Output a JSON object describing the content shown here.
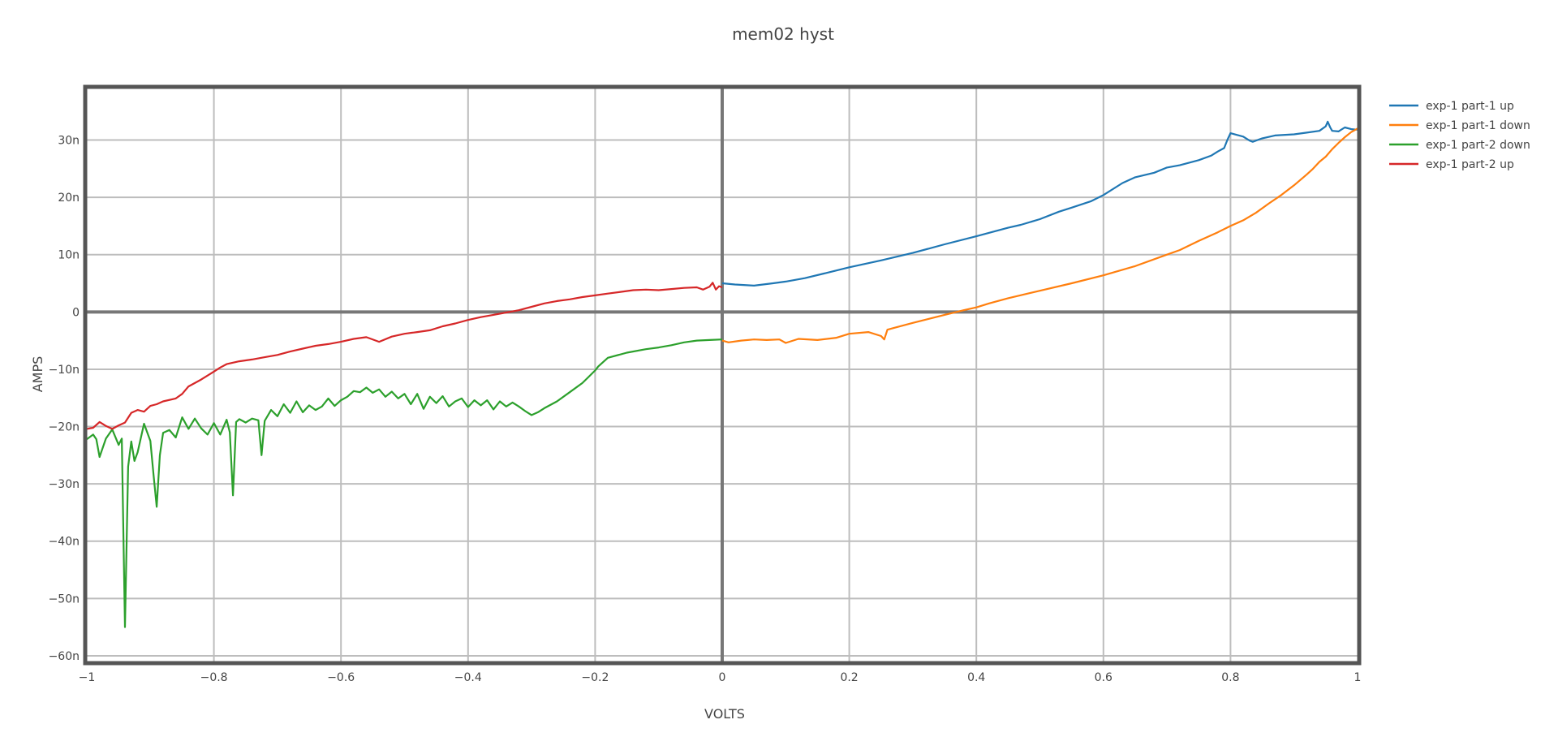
{
  "chart_data": {
    "type": "line",
    "title": "mem02 hyst",
    "xlabel": "VOLTS",
    "ylabel": "AMPS",
    "xlim": [
      -1,
      1
    ],
    "ylim": [
      -61,
      39
    ],
    "grid": true,
    "legend_position": "top-right",
    "x_ticks": [
      {
        "value": -1,
        "label": "−1"
      },
      {
        "value": -0.8,
        "label": "−0.8"
      },
      {
        "value": -0.6,
        "label": "−0.6"
      },
      {
        "value": -0.4,
        "label": "−0.4"
      },
      {
        "value": -0.2,
        "label": "−0.2"
      },
      {
        "value": 0,
        "label": "0"
      },
      {
        "value": 0.2,
        "label": "0.2"
      },
      {
        "value": 0.4,
        "label": "0.4"
      },
      {
        "value": 0.6,
        "label": "0.6"
      },
      {
        "value": 0.8,
        "label": "0.8"
      },
      {
        "value": 1,
        "label": "1"
      }
    ],
    "y_ticks": [
      {
        "value": 30,
        "label": "30n"
      },
      {
        "value": 20,
        "label": "20n"
      },
      {
        "value": 10,
        "label": "10n"
      },
      {
        "value": 0,
        "label": "0"
      },
      {
        "value": -10,
        "label": "−10n"
      },
      {
        "value": -20,
        "label": "−20n"
      },
      {
        "value": -30,
        "label": "−30n"
      },
      {
        "value": -40,
        "label": "−40n"
      },
      {
        "value": -50,
        "label": "−50n"
      },
      {
        "value": -60,
        "label": "−60n"
      }
    ],
    "series": [
      {
        "name": "exp-1 part-1 up",
        "color": "#1f77b4",
        "points": [
          [
            0,
            5
          ],
          [
            0.02,
            4.8
          ],
          [
            0.05,
            4.6
          ],
          [
            0.08,
            5
          ],
          [
            0.1,
            5.3
          ],
          [
            0.13,
            5.9
          ],
          [
            0.16,
            6.7
          ],
          [
            0.2,
            7.8
          ],
          [
            0.25,
            9
          ],
          [
            0.3,
            10.3
          ],
          [
            0.35,
            11.8
          ],
          [
            0.4,
            13.2
          ],
          [
            0.45,
            14.7
          ],
          [
            0.47,
            15.2
          ],
          [
            0.5,
            16.2
          ],
          [
            0.53,
            17.5
          ],
          [
            0.55,
            18.2
          ],
          [
            0.58,
            19.3
          ],
          [
            0.6,
            20.4
          ],
          [
            0.63,
            22.5
          ],
          [
            0.65,
            23.5
          ],
          [
            0.68,
            24.3
          ],
          [
            0.7,
            25.2
          ],
          [
            0.72,
            25.6
          ],
          [
            0.75,
            26.5
          ],
          [
            0.77,
            27.3
          ],
          [
            0.78,
            28
          ],
          [
            0.79,
            28.6
          ],
          [
            0.795,
            30
          ],
          [
            0.8,
            31.2
          ],
          [
            0.81,
            30.9
          ],
          [
            0.82,
            30.6
          ],
          [
            0.83,
            29.9
          ],
          [
            0.835,
            29.7
          ],
          [
            0.85,
            30.3
          ],
          [
            0.87,
            30.8
          ],
          [
            0.9,
            31
          ],
          [
            0.92,
            31.3
          ],
          [
            0.94,
            31.6
          ],
          [
            0.95,
            32.4
          ],
          [
            0.953,
            33.2
          ],
          [
            0.957,
            32.2
          ],
          [
            0.96,
            31.6
          ],
          [
            0.97,
            31.5
          ],
          [
            0.98,
            32.2
          ],
          [
            0.99,
            31.9
          ],
          [
            1,
            31.8
          ]
        ]
      },
      {
        "name": "exp-1 part-1 down",
        "color": "#ff7f0e",
        "points": [
          [
            1,
            32
          ],
          [
            0.99,
            31.4
          ],
          [
            0.98,
            30.5
          ],
          [
            0.97,
            29.5
          ],
          [
            0.96,
            28.4
          ],
          [
            0.95,
            27.1
          ],
          [
            0.94,
            26.2
          ],
          [
            0.93,
            25
          ],
          [
            0.92,
            24
          ],
          [
            0.9,
            22.1
          ],
          [
            0.88,
            20.4
          ],
          [
            0.86,
            18.9
          ],
          [
            0.84,
            17.3
          ],
          [
            0.82,
            16
          ],
          [
            0.8,
            15
          ],
          [
            0.78,
            13.9
          ],
          [
            0.75,
            12.4
          ],
          [
            0.72,
            10.8
          ],
          [
            0.7,
            10
          ],
          [
            0.65,
            8
          ],
          [
            0.6,
            6.4
          ],
          [
            0.55,
            5
          ],
          [
            0.5,
            3.7
          ],
          [
            0.45,
            2.4
          ],
          [
            0.42,
            1.5
          ],
          [
            0.4,
            0.8
          ],
          [
            0.38,
            0.3
          ],
          [
            0.35,
            -0.5
          ],
          [
            0.3,
            -1.9
          ],
          [
            0.27,
            -2.8
          ],
          [
            0.26,
            -3.1
          ],
          [
            0.255,
            -4.8
          ],
          [
            0.25,
            -4.2
          ],
          [
            0.23,
            -3.5
          ],
          [
            0.2,
            -3.8
          ],
          [
            0.18,
            -4.5
          ],
          [
            0.15,
            -4.9
          ],
          [
            0.12,
            -4.7
          ],
          [
            0.1,
            -5.4
          ],
          [
            0.09,
            -4.8
          ],
          [
            0.07,
            -4.9
          ],
          [
            0.05,
            -4.8
          ],
          [
            0.03,
            -5
          ],
          [
            0.01,
            -5.3
          ],
          [
            0,
            -5
          ]
        ]
      },
      {
        "name": "exp-1 part-2 down",
        "color": "#2ca02c",
        "points": [
          [
            0,
            -4.8
          ],
          [
            -0.02,
            -4.9
          ],
          [
            -0.04,
            -5
          ],
          [
            -0.06,
            -5.3
          ],
          [
            -0.08,
            -5.8
          ],
          [
            -0.1,
            -6.2
          ],
          [
            -0.12,
            -6.5
          ],
          [
            -0.15,
            -7.1
          ],
          [
            -0.18,
            -8
          ],
          [
            -0.195,
            -9.5
          ],
          [
            -0.2,
            -10.2
          ],
          [
            -0.21,
            -11.3
          ],
          [
            -0.22,
            -12.4
          ],
          [
            -0.24,
            -14
          ],
          [
            -0.26,
            -15.6
          ],
          [
            -0.28,
            -16.8
          ],
          [
            -0.29,
            -17.5
          ],
          [
            -0.3,
            -18
          ],
          [
            -0.31,
            -17.3
          ],
          [
            -0.32,
            -16.5
          ],
          [
            -0.33,
            -15.8
          ],
          [
            -0.34,
            -16.5
          ],
          [
            -0.35,
            -15.6
          ],
          [
            -0.36,
            -17
          ],
          [
            -0.37,
            -15.4
          ],
          [
            -0.38,
            -16.3
          ],
          [
            -0.39,
            -15.4
          ],
          [
            -0.4,
            -16.6
          ],
          [
            -0.41,
            -15.1
          ],
          [
            -0.42,
            -15.6
          ],
          [
            -0.43,
            -16.5
          ],
          [
            -0.44,
            -14.7
          ],
          [
            -0.45,
            -15.9
          ],
          [
            -0.46,
            -14.8
          ],
          [
            -0.47,
            -16.9
          ],
          [
            -0.48,
            -14.3
          ],
          [
            -0.49,
            -16.1
          ],
          [
            -0.5,
            -14.3
          ],
          [
            -0.51,
            -15.1
          ],
          [
            -0.52,
            -13.9
          ],
          [
            -0.53,
            -14.8
          ],
          [
            -0.54,
            -13.5
          ],
          [
            -0.55,
            -14.1
          ],
          [
            -0.56,
            -13.2
          ],
          [
            -0.57,
            -14
          ],
          [
            -0.58,
            -13.8
          ],
          [
            -0.59,
            -14.8
          ],
          [
            -0.6,
            -15.4
          ],
          [
            -0.61,
            -16.4
          ],
          [
            -0.62,
            -15.1
          ],
          [
            -0.63,
            -16.5
          ],
          [
            -0.64,
            -17.1
          ],
          [
            -0.65,
            -16.3
          ],
          [
            -0.66,
            -17.5
          ],
          [
            -0.67,
            -15.6
          ],
          [
            -0.68,
            -17.6
          ],
          [
            -0.69,
            -16.1
          ],
          [
            -0.7,
            -18.2
          ],
          [
            -0.71,
            -17.1
          ],
          [
            -0.72,
            -19
          ],
          [
            -0.725,
            -25
          ],
          [
            -0.73,
            -18.9
          ],
          [
            -0.74,
            -18.6
          ],
          [
            -0.75,
            -19.3
          ],
          [
            -0.76,
            -18.7
          ],
          [
            -0.765,
            -19.2
          ],
          [
            -0.77,
            -32
          ],
          [
            -0.775,
            -21
          ],
          [
            -0.78,
            -18.8
          ],
          [
            -0.79,
            -21.4
          ],
          [
            -0.8,
            -19.4
          ],
          [
            -0.81,
            -21.4
          ],
          [
            -0.82,
            -20.3
          ],
          [
            -0.83,
            -18.6
          ],
          [
            -0.84,
            -20.4
          ],
          [
            -0.85,
            -18.4
          ],
          [
            -0.86,
            -21.9
          ],
          [
            -0.87,
            -20.6
          ],
          [
            -0.88,
            -21.1
          ],
          [
            -0.885,
            -25
          ],
          [
            -0.89,
            -34
          ],
          [
            -0.895,
            -28.4
          ],
          [
            -0.9,
            -22.5
          ],
          [
            -0.91,
            -19.5
          ],
          [
            -0.92,
            -24.5
          ],
          [
            -0.925,
            -26
          ],
          [
            -0.93,
            -22.6
          ],
          [
            -0.935,
            -27
          ],
          [
            -0.94,
            -55
          ],
          [
            -0.945,
            -22.1
          ],
          [
            -0.95,
            -23.2
          ],
          [
            -0.96,
            -20.5
          ],
          [
            -0.97,
            -22.1
          ],
          [
            -0.98,
            -25.3
          ],
          [
            -0.985,
            -22.2
          ],
          [
            -0.99,
            -21.4
          ],
          [
            -1,
            -22.2
          ]
        ]
      },
      {
        "name": "exp-1 part-2 up",
        "color": "#d62728",
        "points": [
          [
            -1,
            -20.4
          ],
          [
            -0.99,
            -20.2
          ],
          [
            -0.98,
            -19.2
          ],
          [
            -0.97,
            -19.9
          ],
          [
            -0.96,
            -20.4
          ],
          [
            -0.95,
            -19.8
          ],
          [
            -0.94,
            -19.3
          ],
          [
            -0.93,
            -17.6
          ],
          [
            -0.92,
            -17.1
          ],
          [
            -0.91,
            -17.4
          ],
          [
            -0.9,
            -16.4
          ],
          [
            -0.89,
            -16.1
          ],
          [
            -0.88,
            -15.6
          ],
          [
            -0.86,
            -15.1
          ],
          [
            -0.85,
            -14.3
          ],
          [
            -0.84,
            -13
          ],
          [
            -0.83,
            -12.4
          ],
          [
            -0.82,
            -11.8
          ],
          [
            -0.81,
            -11.1
          ],
          [
            -0.8,
            -10.4
          ],
          [
            -0.79,
            -9.7
          ],
          [
            -0.78,
            -9.1
          ],
          [
            -0.76,
            -8.6
          ],
          [
            -0.74,
            -8.3
          ],
          [
            -0.72,
            -7.9
          ],
          [
            -0.7,
            -7.5
          ],
          [
            -0.68,
            -6.9
          ],
          [
            -0.66,
            -6.4
          ],
          [
            -0.64,
            -5.9
          ],
          [
            -0.62,
            -5.6
          ],
          [
            -0.6,
            -5.2
          ],
          [
            -0.58,
            -4.7
          ],
          [
            -0.56,
            -4.4
          ],
          [
            -0.54,
            -5.2
          ],
          [
            -0.52,
            -4.3
          ],
          [
            -0.5,
            -3.8
          ],
          [
            -0.48,
            -3.5
          ],
          [
            -0.46,
            -3.2
          ],
          [
            -0.44,
            -2.5
          ],
          [
            -0.42,
            -2
          ],
          [
            -0.4,
            -1.4
          ],
          [
            -0.38,
            -0.9
          ],
          [
            -0.36,
            -0.5
          ],
          [
            -0.34,
            -0.1
          ],
          [
            -0.32,
            0.3
          ],
          [
            -0.3,
            0.9
          ],
          [
            -0.28,
            1.5
          ],
          [
            -0.26,
            1.9
          ],
          [
            -0.24,
            2.2
          ],
          [
            -0.22,
            2.6
          ],
          [
            -0.2,
            2.9
          ],
          [
            -0.18,
            3.2
          ],
          [
            -0.16,
            3.5
          ],
          [
            -0.14,
            3.8
          ],
          [
            -0.12,
            3.9
          ],
          [
            -0.1,
            3.8
          ],
          [
            -0.08,
            4
          ],
          [
            -0.06,
            4.2
          ],
          [
            -0.04,
            4.3
          ],
          [
            -0.03,
            3.9
          ],
          [
            -0.02,
            4.4
          ],
          [
            -0.015,
            5.1
          ],
          [
            -0.01,
            3.9
          ],
          [
            -0.005,
            4.5
          ],
          [
            0,
            4.3
          ]
        ]
      }
    ]
  }
}
